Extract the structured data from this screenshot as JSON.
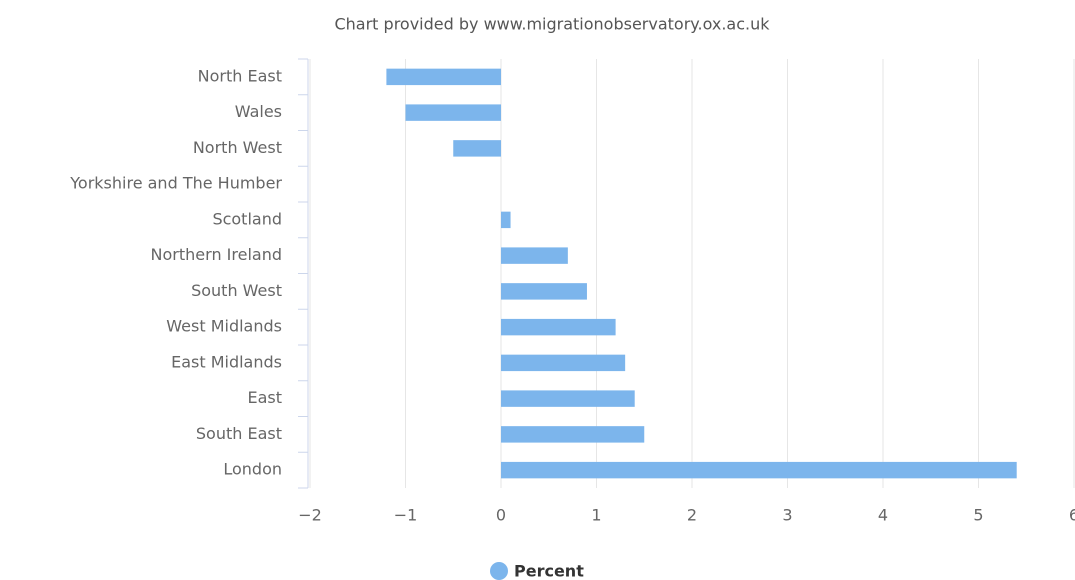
{
  "chart_data": {
    "type": "bar",
    "orientation": "horizontal",
    "title": "Chart provided by www.migrationobservatory.ox.ac.uk",
    "categories": [
      "North East",
      "Wales",
      "North West",
      "Yorkshire and The Humber",
      "Scotland",
      "Northern Ireland",
      "South West",
      "West Midlands",
      "East Midlands",
      "East",
      "South East",
      "London"
    ],
    "series": [
      {
        "name": "Percent",
        "color": "#7cb5ec",
        "values": [
          -1.2,
          -1.0,
          -0.5,
          0,
          0.1,
          0.7,
          0.9,
          1.2,
          1.3,
          1.4,
          1.5,
          5.4
        ]
      }
    ],
    "xlim": [
      -2,
      6
    ],
    "xticks": [
      {
        "value": -2,
        "label": "−2"
      },
      {
        "value": -1,
        "label": "−1"
      },
      0,
      1,
      2,
      3,
      4,
      5,
      6
    ],
    "grid": true,
    "legend": "bottom"
  }
}
